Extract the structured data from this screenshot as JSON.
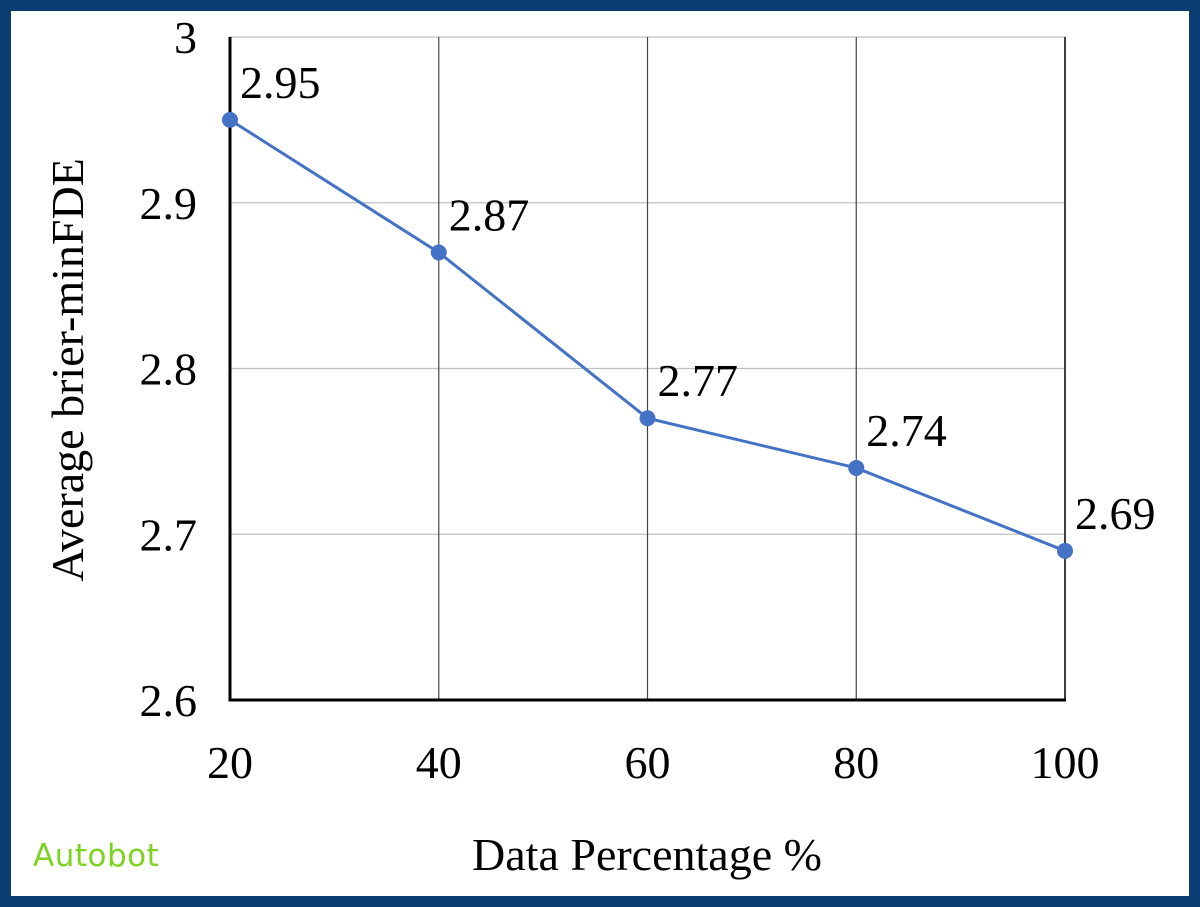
{
  "colors": {
    "frame": "#0a3e73",
    "series_line": "#4472c4",
    "grid": "#bfbfbf",
    "axis": "#000000",
    "watermark": "#7ed321"
  },
  "watermark": "Autobot",
  "chart_data": {
    "type": "line",
    "xlabel": "Data Percentage %",
    "ylabel": "Average brier-minFDE",
    "x": [
      20,
      40,
      60,
      80,
      100
    ],
    "xticks": [
      "20",
      "40",
      "60",
      "80",
      "100"
    ],
    "yticks": [
      "2.6",
      "2.7",
      "2.8",
      "2.9",
      "3"
    ],
    "ylim": [
      2.6,
      3.0
    ],
    "grid": true,
    "series": [
      {
        "values": [
          2.95,
          2.87,
          2.77,
          2.74,
          2.69
        ],
        "data_labels": [
          "2.95",
          "2.87",
          "2.77",
          "2.74",
          "2.69"
        ]
      }
    ]
  }
}
